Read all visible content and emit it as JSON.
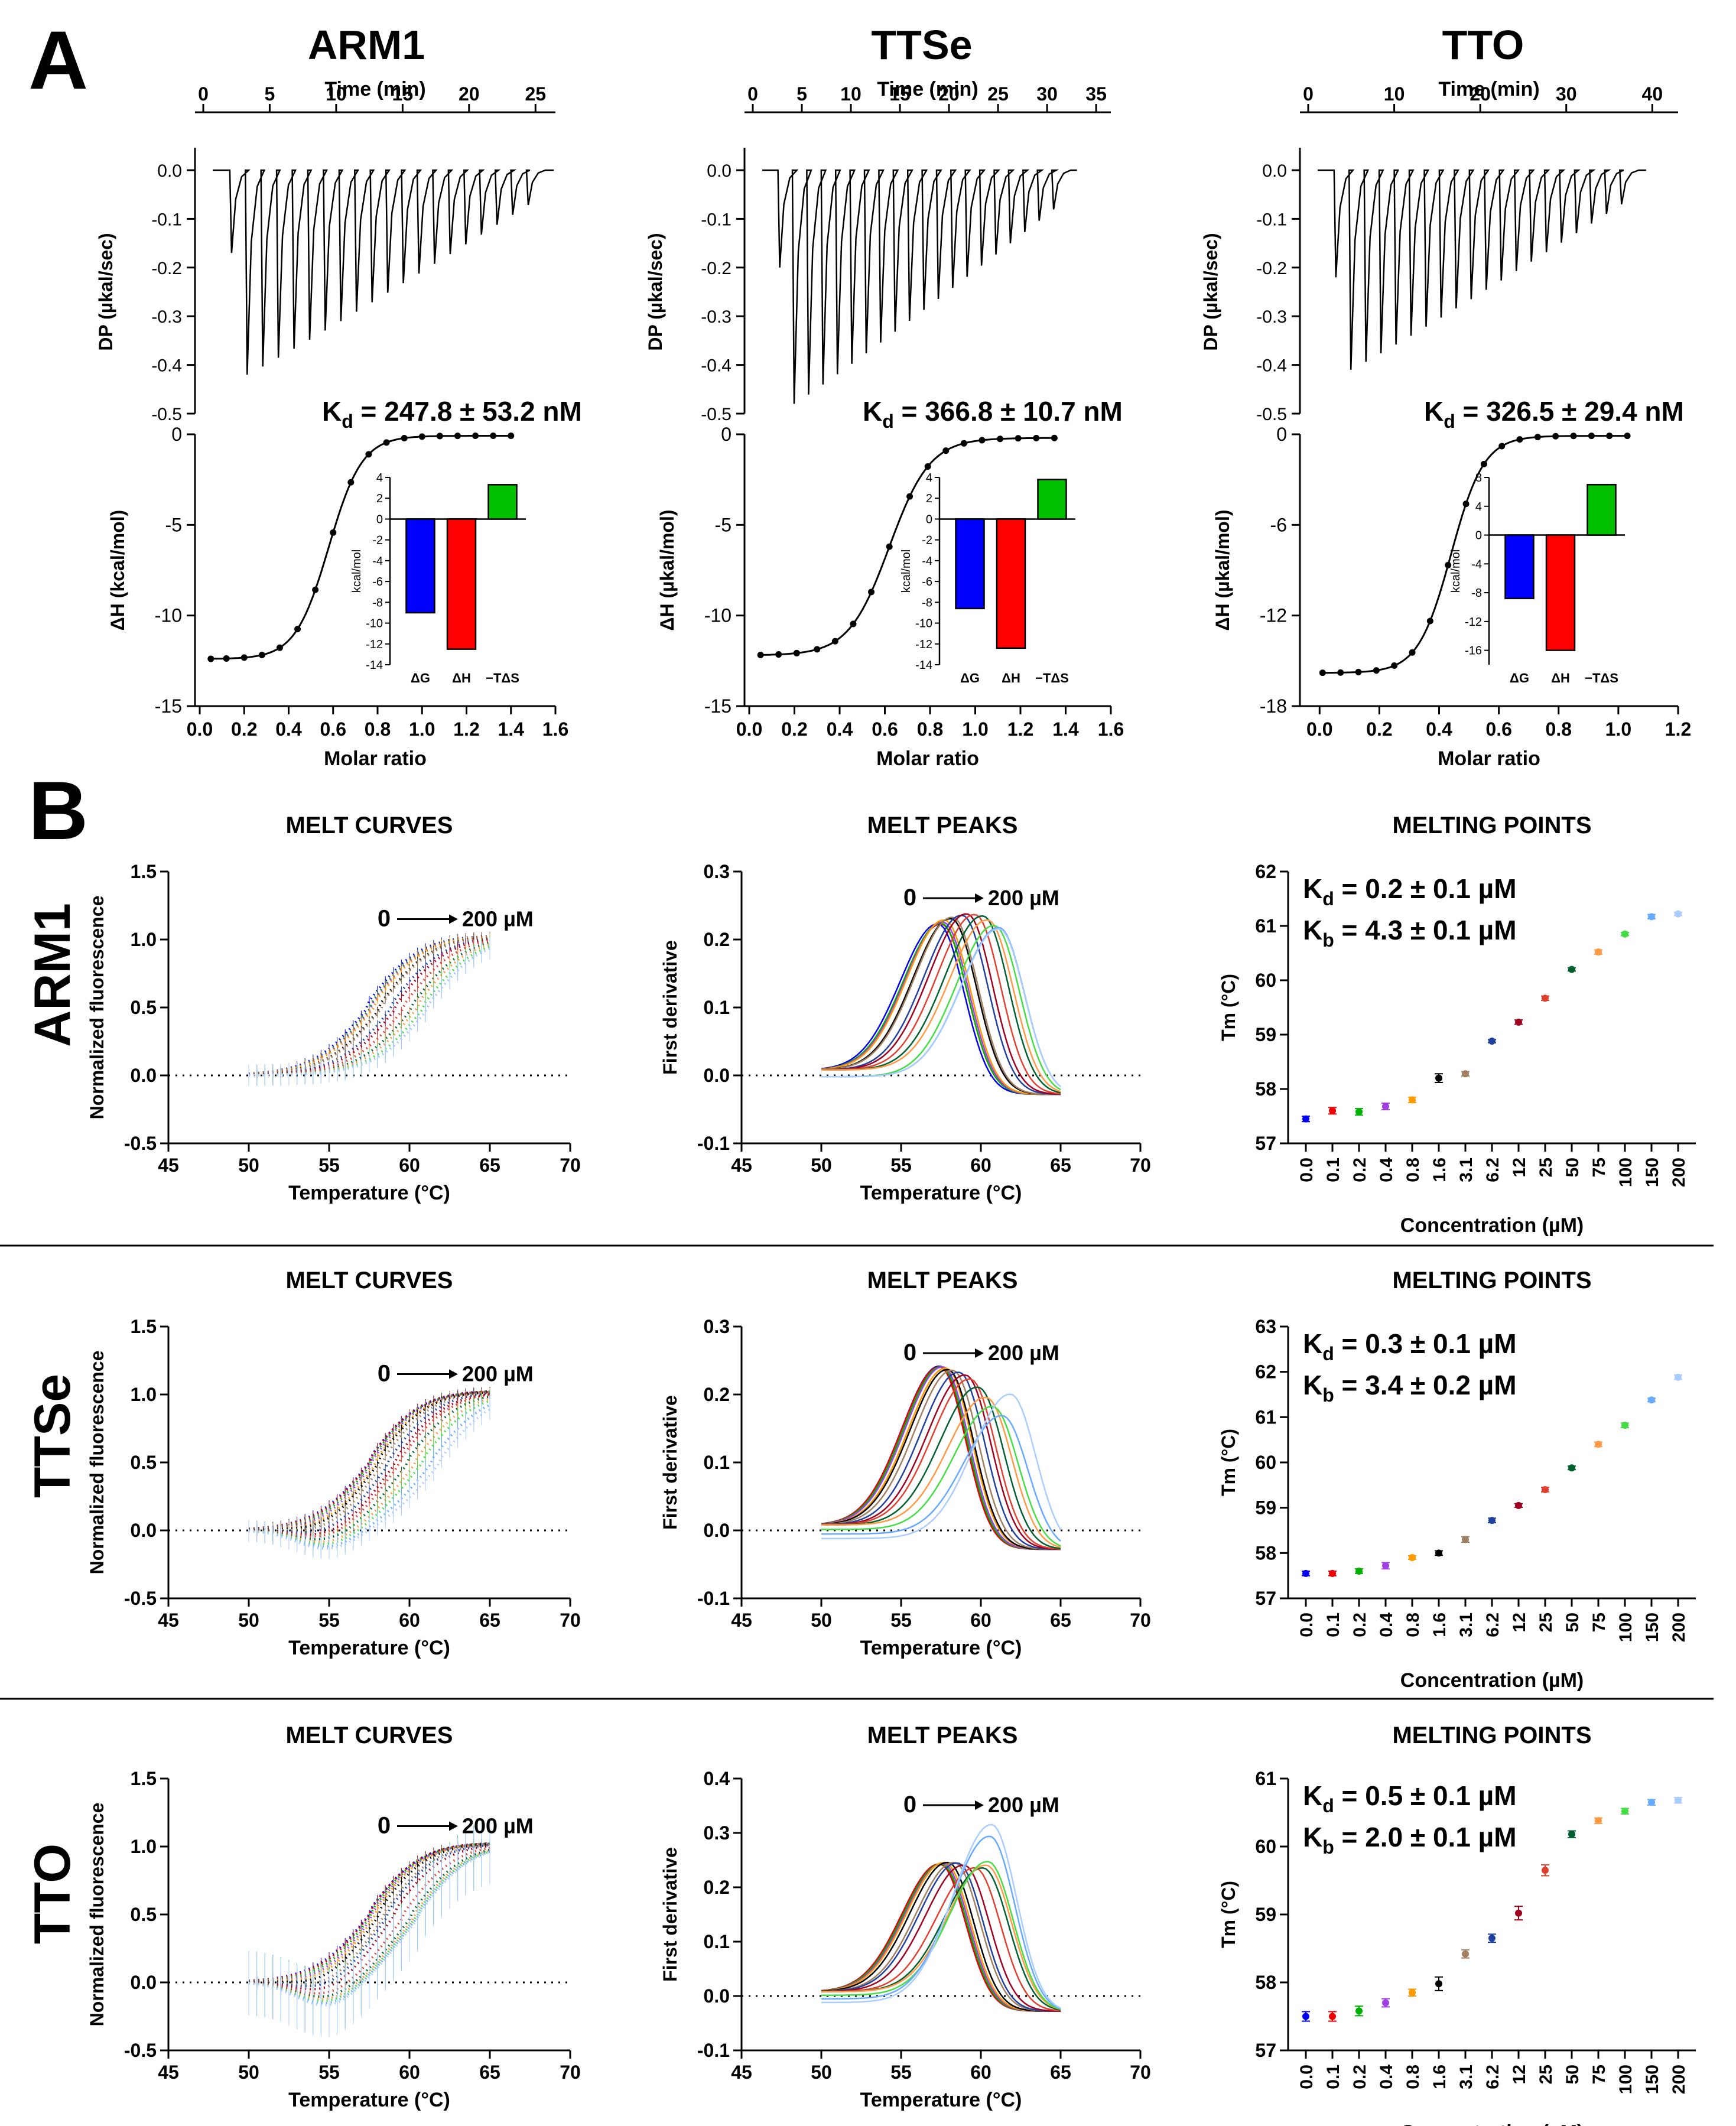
{
  "panel_a": {
    "label": "A",
    "x_top_label": "Time (min)",
    "dp_ylabel": "DP (µkal/sec)",
    "dh_ylabel_arm1": "ΔH (kcal/mol)",
    "dh_ylabel_other": "ΔH (µkal/mol)",
    "x_bottom_label": "Molar ratio",
    "inset_ylabel": "kcal/mol",
    "inset_cats": [
      "ΔG",
      "ΔH",
      "−TΔS"
    ],
    "bar_colors": [
      "#0000ff",
      "#ff0000",
      "#00c000"
    ]
  },
  "panel_b": {
    "label": "B",
    "curves_title": "MELT CURVES",
    "curves_title_tto": "MELT  CURVES",
    "peaks_title": "MELT PEAKS",
    "points_title": "MELTING POINTS",
    "curves_ylabel": "Normalized fluorescence",
    "peaks_ylabel": "First derivative",
    "points_ylabel": "Tm (°C)",
    "temp_xlabel": "Temperature (°C)",
    "conc_xlabel": "Concentration (µM)",
    "arrow_start": "0",
    "arrow_end": "200 µM",
    "conc_categories": [
      "0.0",
      "0.1",
      "0.2",
      "0.4",
      "0.8",
      "1.6",
      "3.1",
      "6.2",
      "12",
      "25",
      "50",
      "75",
      "100",
      "150",
      "200"
    ],
    "series_colors": [
      "#0000ee",
      "#ee0000",
      "#00b000",
      "#a040e0",
      "#ff9900",
      "#000000",
      "#a08060",
      "#2040a0",
      "#a00020",
      "#e04030",
      "#006030",
      "#ff9944",
      "#44dd44",
      "#66aaff",
      "#aaccff"
    ]
  },
  "chart_data": [
    {
      "type": "line",
      "id": "itc_arm1",
      "title": "ARM1",
      "top_axis_label": "Time (min)",
      "top_ticks": [
        "0",
        "5",
        "10",
        "15",
        "20",
        "25"
      ],
      "dp_ylabel": "DP (µkal/sec)",
      "dp_ylim": [
        -0.5,
        0.0
      ],
      "dp_ticks": [
        "0.0",
        "-0.1",
        "-0.2",
        "-0.3",
        "-0.4",
        "-0.5"
      ],
      "time_range": [
        0,
        26
      ],
      "n_injections": 20,
      "first_peak": -0.17,
      "main_peak": -0.41,
      "kd_text": "= 247.8 ± 53.2 nM",
      "dh_ylabel": "ΔH (kcal/mol)",
      "dh_ylim": [
        -15,
        0
      ],
      "dh_ticks": [
        "0",
        "-5",
        "-10",
        "-15"
      ],
      "x_ticks": [
        "0.0",
        "0.2",
        "0.4",
        "0.6",
        "0.8",
        "1.0",
        "1.2",
        "1.4",
        "1.6"
      ],
      "xlabel": "Molar ratio",
      "xlim": [
        0,
        1.6
      ],
      "fit": {
        "bottom": -12.4,
        "top": -0.08,
        "mid": 0.58,
        "width": 0.075
      },
      "points_x": [
        0.05,
        0.12,
        0.2,
        0.28,
        0.36,
        0.44,
        0.52,
        0.6,
        0.68,
        0.76,
        0.84,
        0.92,
        1.0,
        1.08,
        1.16,
        1.24,
        1.32,
        1.4
      ],
      "inset": {
        "categories": [
          "ΔG",
          "ΔH",
          "−TΔS"
        ],
        "values": [
          -9.0,
          -12.5,
          3.3
        ],
        "ylim": [
          -14,
          4
        ],
        "ticks": [
          4,
          2,
          0,
          -2,
          -4,
          -6,
          -8,
          -10,
          -12,
          -14
        ],
        "ylabel": "kcal/mol"
      }
    },
    {
      "type": "line",
      "id": "itc_ttse",
      "title": "TTSe",
      "top_axis_label": "Time (min)",
      "top_ticks": [
        "0",
        "5",
        "10",
        "15",
        "20",
        "25",
        "30",
        "35"
      ],
      "dp_ylabel": "DP (µkal/sec)",
      "dp_ylim": [
        -0.5,
        0.0
      ],
      "dp_ticks": [
        "0.0",
        "-0.1",
        "-0.2",
        "-0.3",
        "-0.4",
        "-0.5"
      ],
      "time_range": [
        0,
        33
      ],
      "n_injections": 20,
      "first_peak": -0.2,
      "main_peak": -0.47,
      "kd_text": "= 366.8 ± 10.7 nM",
      "dh_ylabel": "ΔH (µkal/mol)",
      "dh_ylim": [
        -15,
        0
      ],
      "dh_ticks": [
        "0",
        "-5",
        "-10",
        "-15"
      ],
      "x_ticks": [
        "0.0",
        "0.2",
        "0.4",
        "0.6",
        "0.8",
        "1.0",
        "1.2",
        "1.4",
        "1.6"
      ],
      "xlabel": "Molar ratio",
      "xlim": [
        0,
        1.6
      ],
      "fit": {
        "bottom": -12.2,
        "top": -0.2,
        "mid": 0.62,
        "width": 0.09
      },
      "points_x": [
        0.05,
        0.13,
        0.21,
        0.3,
        0.38,
        0.46,
        0.54,
        0.62,
        0.71,
        0.79,
        0.87,
        0.95,
        1.03,
        1.11,
        1.19,
        1.27,
        1.35
      ],
      "inset": {
        "categories": [
          "ΔG",
          "ΔH",
          "−TΔS"
        ],
        "values": [
          -8.6,
          -12.4,
          3.8
        ],
        "ylim": [
          -14,
          4
        ],
        "ticks": [
          4,
          2,
          0,
          -2,
          -4,
          -6,
          -8,
          -10,
          -12,
          -14
        ],
        "ylabel": "kcal/mol"
      }
    },
    {
      "type": "line",
      "id": "itc_tto",
      "title": "TTO",
      "top_axis_label": "Time (min)",
      "top_ticks": [
        "0",
        "10",
        "20",
        "30",
        "40"
      ],
      "dp_ylabel": "DP (µkal/sec)",
      "dp_ylim": [
        -0.5,
        0.0
      ],
      "dp_ticks": [
        "0.0",
        "-0.1",
        "-0.2",
        "-0.3",
        "-0.4",
        "-0.5"
      ],
      "time_range": [
        0,
        38
      ],
      "n_injections": 20,
      "first_peak": -0.22,
      "main_peak": -0.4,
      "kd_text": "= 326.5 ± 29.4 nM",
      "dh_ylabel": "ΔH (µkal/mol)",
      "dh_ylim": [
        -18,
        0
      ],
      "dh_ticks": [
        "0",
        "-6",
        "-12",
        "-18"
      ],
      "x_ticks": [
        "0.0",
        "0.2",
        "0.4",
        "0.6",
        "0.8",
        "1.0",
        "1.2"
      ],
      "xlabel": "Molar ratio",
      "xlim": [
        -0.05,
        1.2
      ],
      "fit": {
        "bottom": -15.8,
        "top": -0.1,
        "mid": 0.44,
        "width": 0.055
      },
      "points_x": [
        0.01,
        0.07,
        0.13,
        0.19,
        0.25,
        0.31,
        0.37,
        0.43,
        0.49,
        0.55,
        0.61,
        0.67,
        0.73,
        0.79,
        0.85,
        0.91,
        0.97,
        1.03
      ],
      "inset": {
        "categories": [
          "ΔG",
          "ΔH",
          "−TΔS"
        ],
        "values": [
          -8.8,
          -16.0,
          7.0
        ],
        "ylim": [
          -18,
          8
        ],
        "ticks": [
          8,
          4,
          0,
          -4,
          -8,
          -12,
          -16
        ],
        "ylabel": "kcal/mol"
      }
    },
    {
      "type": "line",
      "id": "curves_arm1",
      "row_label": "ARM1",
      "title": "MELT CURVES",
      "xlim": [
        45,
        70
      ],
      "x_ticks": [
        "45",
        "50",
        "55",
        "60",
        "65",
        "70"
      ],
      "ylim": [
        -0.5,
        1.5
      ],
      "y_ticks": [
        "1.5",
        "1.0",
        "0.5",
        "0.0",
        "-0.5"
      ],
      "curve_range": [
        50,
        65
      ],
      "tm_values": [
        57.4,
        57.6,
        57.6,
        57.7,
        57.8,
        58.2,
        58.3,
        58.9,
        59.2,
        59.7,
        60.2,
        60.5,
        60.9,
        61.2,
        61.2
      ],
      "dip": 0.0
    },
    {
      "type": "line",
      "id": "peaks_arm1",
      "title": "MELT PEAKS",
      "xlim": [
        45,
        70
      ],
      "x_ticks": [
        "45",
        "50",
        "55",
        "60",
        "65",
        "70"
      ],
      "ylim": [
        -0.1,
        0.3
      ],
      "y_ticks": [
        "0.3",
        "0.2",
        "0.1",
        "0.0",
        "-0.1"
      ],
      "tm_values": [
        57.4,
        57.6,
        57.6,
        57.7,
        57.8,
        58.2,
        58.3,
        58.9,
        59.2,
        59.7,
        60.2,
        60.5,
        60.9,
        61.2,
        61.2
      ],
      "peak_heights": [
        0.222,
        0.222,
        0.223,
        0.225,
        0.228,
        0.23,
        0.232,
        0.235,
        0.237,
        0.236,
        0.234,
        0.228,
        0.225,
        0.222,
        0.22
      ]
    },
    {
      "type": "scatter",
      "id": "points_arm1",
      "title": "MELTING POINTS",
      "categories": [
        "0.0",
        "0.1",
        "0.2",
        "0.4",
        "0.8",
        "1.6",
        "3.1",
        "6.2",
        "12",
        "25",
        "50",
        "75",
        "100",
        "150",
        "200"
      ],
      "values": [
        57.45,
        57.6,
        57.58,
        57.68,
        57.8,
        58.2,
        58.28,
        58.88,
        59.23,
        59.67,
        60.2,
        60.52,
        60.85,
        61.17,
        61.22
      ],
      "errors": [
        0.05,
        0.06,
        0.06,
        0.06,
        0.05,
        0.08,
        0.04,
        0.03,
        0.04,
        0.04,
        0.03,
        0.04,
        0.03,
        0.04,
        0.03
      ],
      "ylim": [
        57,
        62
      ],
      "y_ticks": [
        "57",
        "58",
        "59",
        "60",
        "61",
        "62"
      ],
      "kd_text": "= 0.2 ± 0.1 µM",
      "kb_text": "= 4.3 ± 0.1 µM"
    },
    {
      "type": "line",
      "id": "curves_ttse",
      "row_label": "TTSe",
      "title": "MELT CURVES",
      "xlim": [
        45,
        70
      ],
      "x_ticks": [
        "45",
        "50",
        "55",
        "60",
        "65",
        "70"
      ],
      "ylim": [
        -0.5,
        1.5
      ],
      "y_ticks": [
        "1.5",
        "1.0",
        "0.5",
        "0.0",
        "-0.5"
      ],
      "curve_range": [
        50,
        65
      ],
      "tm_values": [
        57.5,
        57.5,
        57.6,
        57.7,
        57.9,
        58.0,
        58.3,
        58.7,
        59.1,
        59.4,
        59.9,
        60.4,
        60.8,
        61.4,
        61.9
      ],
      "dip": -0.15
    },
    {
      "type": "line",
      "id": "peaks_ttse",
      "title": "MELT PEAKS",
      "xlim": [
        45,
        70
      ],
      "x_ticks": [
        "45",
        "50",
        "55",
        "60",
        "65",
        "70"
      ],
      "ylim": [
        -0.1,
        0.3
      ],
      "y_ticks": [
        "0.3",
        "0.2",
        "0.1",
        "0.0",
        "-0.1"
      ],
      "tm_values": [
        57.5,
        57.5,
        57.6,
        57.7,
        57.9,
        58.0,
        58.3,
        58.7,
        59.1,
        59.4,
        59.9,
        60.4,
        60.8,
        61.4,
        61.9
      ],
      "peak_heights": [
        0.241,
        0.24,
        0.24,
        0.24,
        0.238,
        0.236,
        0.235,
        0.232,
        0.228,
        0.222,
        0.21,
        0.195,
        0.185,
        0.175,
        0.21
      ]
    },
    {
      "type": "scatter",
      "id": "points_ttse",
      "title": "MELTING POINTS",
      "categories": [
        "0.0",
        "0.1",
        "0.2",
        "0.4",
        "0.8",
        "1.6",
        "3.1",
        "6.2",
        "12",
        "25",
        "50",
        "75",
        "100",
        "150",
        "200"
      ],
      "values": [
        57.55,
        57.55,
        57.6,
        57.72,
        57.9,
        58.0,
        58.3,
        58.72,
        59.05,
        59.4,
        59.88,
        60.4,
        60.82,
        61.38,
        61.88
      ],
      "errors": [
        0.05,
        0.05,
        0.05,
        0.07,
        0.04,
        0.05,
        0.06,
        0.05,
        0.04,
        0.05,
        0.04,
        0.05,
        0.05,
        0.04,
        0.05
      ],
      "ylim": [
        57,
        63
      ],
      "y_ticks": [
        "57",
        "58",
        "59",
        "60",
        "61",
        "62",
        "63"
      ],
      "kd_text": "= 0.3 ± 0.1 µM",
      "kb_text": "= 3.4 ± 0.2 µM"
    },
    {
      "type": "line",
      "id": "curves_tto",
      "row_label": "TTO",
      "title": "MELT  CURVES",
      "xlim": [
        45,
        70
      ],
      "x_ticks": [
        "45",
        "50",
        "55",
        "60",
        "65",
        "70"
      ],
      "ylim": [
        -0.5,
        1.5
      ],
      "y_ticks": [
        "1.5",
        "1.0",
        "0.5",
        "0.0",
        "-0.5"
      ],
      "curve_range": [
        50,
        65
      ],
      "tm_values": [
        57.5,
        57.5,
        57.6,
        57.7,
        57.8,
        58.0,
        58.4,
        58.6,
        59.0,
        59.7,
        60.2,
        60.4,
        60.5,
        60.6,
        60.7
      ],
      "dip": -0.2
    },
    {
      "type": "line",
      "id": "peaks_tto",
      "title": "MELT PEAKS",
      "xlim": [
        45,
        70
      ],
      "x_ticks": [
        "45",
        "50",
        "55",
        "60",
        "65",
        "70"
      ],
      "ylim": [
        -0.1,
        0.4
      ],
      "y_ticks": [
        "0.4",
        "0.3",
        "0.2",
        "0.1",
        "0.0",
        "-0.1"
      ],
      "tm_values": [
        57.5,
        57.5,
        57.6,
        57.7,
        57.8,
        58.0,
        58.4,
        58.6,
        59.0,
        59.7,
        60.2,
        60.4,
        60.5,
        60.6,
        60.7
      ],
      "peak_heights": [
        0.242,
        0.242,
        0.242,
        0.243,
        0.245,
        0.245,
        0.245,
        0.244,
        0.24,
        0.235,
        0.235,
        0.24,
        0.25,
        0.3,
        0.325
      ]
    },
    {
      "type": "scatter",
      "id": "points_tto",
      "title": "MELTING POINTS",
      "categories": [
        "0.0",
        "0.1",
        "0.2",
        "0.4",
        "0.8",
        "1.6",
        "3.1",
        "6.2",
        "12",
        "25",
        "50",
        "75",
        "100",
        "150",
        "200"
      ],
      "values": [
        57.5,
        57.5,
        57.58,
        57.7,
        57.85,
        57.98,
        58.42,
        58.65,
        59.02,
        59.65,
        60.18,
        60.38,
        60.52,
        60.65,
        60.68
      ],
      "errors": [
        0.07,
        0.07,
        0.07,
        0.06,
        0.05,
        0.1,
        0.06,
        0.06,
        0.1,
        0.08,
        0.05,
        0.04,
        0.04,
        0.04,
        0.04
      ],
      "ylim": [
        57,
        61
      ],
      "y_ticks": [
        "57",
        "58",
        "59",
        "60",
        "61"
      ],
      "kd_text": "= 0.5 ± 0.1 µM",
      "kb_text": "= 2.0 ± 0.1 µM"
    }
  ]
}
